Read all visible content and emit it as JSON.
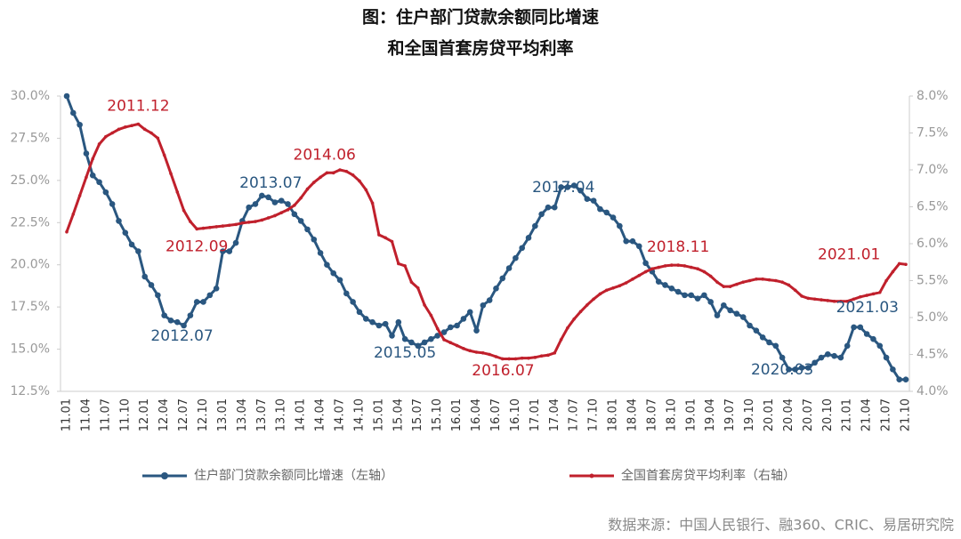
{
  "chart_data": {
    "type": "line",
    "title": [
      "图：住户部门贷款余额同比增速",
      "和全国首套房贷平均利率"
    ],
    "source": "数据来源：中国人民银行、融360、CRIC、易居研究院",
    "categories": [
      "11.01",
      null,
      null,
      "11.04",
      null,
      null,
      "11.07",
      null,
      null,
      "11.10",
      null,
      null,
      "12.01",
      null,
      null,
      "12.04",
      null,
      null,
      "12.07",
      null,
      null,
      "12.10",
      null,
      null,
      "13.01",
      null,
      null,
      "13.04",
      null,
      null,
      "13.07",
      null,
      null,
      "13.10",
      null,
      null,
      "14.01",
      null,
      null,
      "14.04",
      null,
      null,
      "14.07",
      null,
      null,
      "14.10",
      null,
      null,
      "15.01",
      null,
      null,
      "15.04",
      null,
      null,
      "15.07",
      null,
      null,
      "15.10",
      null,
      null,
      "16.01",
      null,
      null,
      "16.04",
      null,
      null,
      "16.07",
      null,
      null,
      "16.10",
      null,
      null,
      "17.01",
      null,
      null,
      "17.04",
      null,
      null,
      "17.07",
      null,
      null,
      "17.10",
      null,
      null,
      "18.01",
      null,
      null,
      "18.04",
      null,
      null,
      "18.07",
      null,
      null,
      "18.10",
      null,
      null,
      "19.01",
      null,
      null,
      "19.04",
      null,
      null,
      "19.07",
      null,
      null,
      "19.10",
      null,
      null,
      "20.01",
      null,
      null,
      "20.04",
      null,
      null,
      "20.07",
      null,
      null,
      "20.10",
      null,
      null,
      "21.01",
      null,
      null,
      "21.04",
      null,
      null,
      "21.07",
      null,
      null,
      "21.10"
    ],
    "ylim": [
      12.5,
      30
    ],
    "yticks": [
      {
        "value": 12.5,
        "label": "12.5%"
      },
      {
        "value": 15,
        "label": "15.0%"
      },
      {
        "value": 17.5,
        "label": "17.5%"
      },
      {
        "value": 20,
        "label": "20.0%"
      },
      {
        "value": 22.5,
        "label": "22.5%"
      },
      {
        "value": 25,
        "label": "25.0%"
      },
      {
        "value": 27.5,
        "label": "27.5%"
      },
      {
        "value": 30,
        "label": "30.0%"
      }
    ],
    "y2lim": [
      4,
      8
    ],
    "y2ticks": [
      {
        "value": 4,
        "label": "4.0%"
      },
      {
        "value": 4.5,
        "label": "4.5%"
      },
      {
        "value": 5,
        "label": "5.0%"
      },
      {
        "value": 5.5,
        "label": "5.5%"
      },
      {
        "value": 6,
        "label": "6.0%"
      },
      {
        "value": 6.5,
        "label": "6.5%"
      },
      {
        "value": 7,
        "label": "7.0%"
      },
      {
        "value": 7.5,
        "label": "7.5%"
      },
      {
        "value": 8,
        "label": "8.0%"
      }
    ],
    "grid": false,
    "series": [
      {
        "name": "住户部门贷款余额同比增速（左轴）",
        "color": "#2a5780",
        "axis": "y",
        "annotations": [
          "2013.07",
          "2012.07",
          "2015.05",
          "2017.04",
          "2020.03",
          "2021.03"
        ],
        "values": [
          30,
          29.0,
          28.3,
          26.6,
          25.3,
          24.9,
          24.3,
          23.6,
          22.6,
          21.9,
          21.2,
          20.8,
          19.3,
          18.8,
          18.2,
          17.0,
          16.7,
          16.6,
          16.4,
          17.0,
          17.8,
          17.8,
          18.2,
          18.6,
          20.8,
          20.8,
          21.3,
          22.6,
          23.4,
          23.6,
          24.1,
          24.0,
          23.7,
          23.8,
          23.6,
          23.0,
          22.6,
          22.1,
          21.5,
          20.7,
          20.0,
          19.5,
          19.1,
          18.3,
          17.8,
          17.2,
          16.8,
          16.6,
          16.4,
          16.5,
          15.8,
          16.6,
          15.6,
          15.4,
          15.2,
          15.4,
          15.6,
          15.8,
          16.0,
          16.3,
          16.4,
          16.8,
          17.2,
          16.1,
          17.6,
          17.9,
          18.6,
          19.2,
          19.8,
          20.4,
          21.0,
          21.6,
          22.3,
          23.0,
          23.4,
          23.4,
          24.6,
          24.6,
          24.7,
          24.4,
          23.9,
          23.8,
          23.3,
          23.1,
          22.8,
          22.3,
          21.4,
          21.4,
          21.1,
          20.1,
          19.6,
          19.0,
          18.8,
          18.6,
          18.4,
          18.2,
          18.2,
          18.0,
          18.2,
          17.8,
          17.0,
          17.6,
          17.3,
          17.1,
          16.9,
          16.4,
          16.1,
          15.7,
          15.4,
          15.2,
          14.5,
          13.8,
          13.8,
          13.9,
          13.9,
          14.2,
          14.5,
          14.7,
          14.6,
          14.5,
          15.2,
          16.3,
          16.3,
          15.9,
          15.6,
          15.2,
          14.5,
          13.8,
          13.2,
          13.2
        ]
      },
      {
        "name": "全国首套房贷平均利率（右轴）",
        "color": "#c0202c",
        "axis": "y2",
        "annotations": [
          "2011.12",
          "2012.09",
          "2014.06",
          "2016.07",
          "2018.11",
          "2021.01"
        ],
        "values": [
          6.16,
          6.4,
          6.65,
          6.9,
          7.15,
          7.35,
          7.45,
          7.5,
          7.55,
          7.58,
          7.6,
          7.62,
          7.55,
          7.5,
          7.43,
          7.2,
          6.95,
          6.7,
          6.45,
          6.3,
          6.2,
          6.21,
          6.22,
          6.23,
          6.24,
          6.25,
          6.26,
          6.28,
          6.29,
          6.3,
          6.32,
          6.35,
          6.38,
          6.42,
          6.46,
          6.52,
          6.62,
          6.74,
          6.83,
          6.9,
          6.96,
          6.96,
          7.0,
          6.98,
          6.93,
          6.85,
          6.73,
          6.55,
          6.12,
          6.08,
          6.03,
          5.73,
          5.7,
          5.48,
          5.4,
          5.17,
          5.03,
          4.85,
          4.7,
          4.66,
          4.62,
          4.58,
          4.55,
          4.53,
          4.52,
          4.5,
          4.47,
          4.44,
          4.44,
          4.44,
          4.45,
          4.45,
          4.46,
          4.48,
          4.49,
          4.52,
          4.7,
          4.86,
          4.98,
          5.08,
          5.17,
          5.25,
          5.32,
          5.37,
          5.4,
          5.43,
          5.47,
          5.52,
          5.57,
          5.62,
          5.66,
          5.68,
          5.7,
          5.71,
          5.71,
          5.7,
          5.68,
          5.66,
          5.62,
          5.56,
          5.48,
          5.42,
          5.42,
          5.45,
          5.48,
          5.5,
          5.52,
          5.52,
          5.51,
          5.5,
          5.48,
          5.44,
          5.37,
          5.29,
          5.26,
          5.25,
          5.24,
          5.23,
          5.22,
          5.22,
          5.22,
          5.25,
          5.28,
          5.3,
          5.32,
          5.34,
          5.5,
          5.62,
          5.73,
          5.72
        ]
      }
    ]
  }
}
